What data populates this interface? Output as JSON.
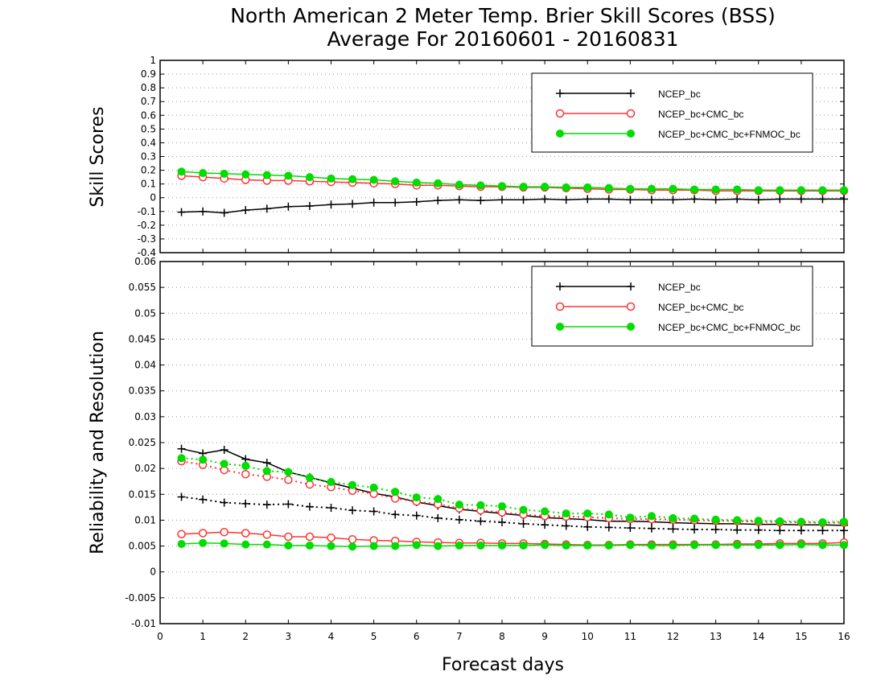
{
  "title_line1": "North American 2 Meter Temp. Brier Skill Scores (BSS)",
  "title_line2": "Average For 20160601 - 20160831",
  "xlabel": "Forecast days",
  "chart_data": [
    {
      "type": "line",
      "ylabel": "Skill Scores",
      "xlim": [
        0,
        16
      ],
      "ylim": [
        -0.4,
        1
      ],
      "xticks": [
        0,
        1,
        2,
        3,
        4,
        5,
        6,
        7,
        8,
        9,
        10,
        11,
        12,
        13,
        14,
        15,
        16
      ],
      "yticks": [
        "1",
        "0.9",
        "0.8",
        "0.7",
        "0.6",
        "0.5",
        "0.4",
        "0.3",
        "0.2",
        "0.1",
        "0",
        "-0.1",
        "-0.2",
        "-0.3",
        "-0.4"
      ],
      "ytick_values": [
        1,
        0.9,
        0.8,
        0.7,
        0.6,
        0.5,
        0.4,
        0.3,
        0.2,
        0.1,
        0,
        -0.1,
        -0.2,
        -0.3,
        -0.4
      ],
      "grid": true,
      "legend_placement": "top-right",
      "legend": [
        {
          "label": "NCEP_bc",
          "color": "#000000",
          "marker": "plus"
        },
        {
          "label": "NCEP_bc+CMC_bc",
          "color": "#ff3333",
          "marker": "open-circle"
        },
        {
          "label": "NCEP_bc+CMC_bc+FNMOC_bc",
          "color": "#00dd00",
          "marker": "filled-circle"
        }
      ],
      "x": [
        0.5,
        1,
        1.5,
        2,
        2.5,
        3,
        3.5,
        4,
        4.5,
        5,
        5.5,
        6,
        6.5,
        7,
        7.5,
        8,
        8.5,
        9,
        9.5,
        10,
        10.5,
        11,
        11.5,
        12,
        12.5,
        13,
        13.5,
        14,
        14.5,
        15,
        15.5,
        16
      ],
      "series": [
        {
          "name": "NCEP_bc",
          "color": "#000000",
          "marker": "plus",
          "style": "solid",
          "values": [
            -0.105,
            -0.1,
            -0.11,
            -0.09,
            -0.08,
            -0.065,
            -0.06,
            -0.05,
            -0.045,
            -0.035,
            -0.035,
            -0.03,
            -0.02,
            -0.015,
            -0.02,
            -0.015,
            -0.015,
            -0.01,
            -0.015,
            -0.01,
            -0.01,
            -0.015,
            -0.015,
            -0.015,
            -0.01,
            -0.015,
            -0.01,
            -0.015,
            -0.01,
            -0.01,
            -0.01,
            -0.01
          ]
        },
        {
          "name": "NCEP_bc+CMC_bc",
          "color": "#ff3333",
          "marker": "open-circle",
          "style": "solid",
          "values": [
            0.16,
            0.15,
            0.14,
            0.13,
            0.125,
            0.125,
            0.12,
            0.115,
            0.11,
            0.105,
            0.1,
            0.09,
            0.09,
            0.085,
            0.08,
            0.08,
            0.075,
            0.075,
            0.07,
            0.065,
            0.06,
            0.06,
            0.055,
            0.055,
            0.055,
            0.05,
            0.05,
            0.05,
            0.05,
            0.05,
            0.05,
            0.05
          ]
        },
        {
          "name": "NCEP_bc+CMC_bc+FNMOC_bc",
          "color": "#00dd00",
          "marker": "filled-circle",
          "style": "solid",
          "values": [
            0.19,
            0.18,
            0.175,
            0.17,
            0.165,
            0.16,
            0.15,
            0.14,
            0.135,
            0.13,
            0.12,
            0.11,
            0.105,
            0.095,
            0.09,
            0.085,
            0.08,
            0.08,
            0.075,
            0.075,
            0.07,
            0.065,
            0.065,
            0.065,
            0.06,
            0.06,
            0.06,
            0.055,
            0.055,
            0.055,
            0.055,
            0.055
          ]
        }
      ]
    },
    {
      "type": "line",
      "ylabel": "Reliability and Resolution",
      "xlim": [
        0,
        16
      ],
      "ylim": [
        -0.01,
        0.06
      ],
      "xticks": [
        0,
        1,
        2,
        3,
        4,
        5,
        6,
        7,
        8,
        9,
        10,
        11,
        12,
        13,
        14,
        15,
        16
      ],
      "yticks": [
        "0.06",
        "0.055",
        "0.05",
        "0.045",
        "0.04",
        "0.035",
        "0.03",
        "0.025",
        "0.02",
        "0.015",
        "0.01",
        "0.005",
        "0",
        "-0.005",
        "-0.01"
      ],
      "ytick_values": [
        0.06,
        0.055,
        0.05,
        0.045,
        0.04,
        0.035,
        0.03,
        0.025,
        0.02,
        0.015,
        0.01,
        0.005,
        0,
        -0.005,
        -0.01
      ],
      "grid": true,
      "legend_placement": "top-right",
      "legend": [
        {
          "label": "NCEP_bc",
          "color": "#000000",
          "marker": "plus"
        },
        {
          "label": "NCEP_bc+CMC_bc",
          "color": "#ff3333",
          "marker": "open-circle"
        },
        {
          "label": "NCEP_bc+CMC_bc+FNMOC_bc",
          "color": "#00dd00",
          "marker": "filled-circle"
        }
      ],
      "x": [
        0.5,
        1,
        1.5,
        2,
        2.5,
        3,
        3.5,
        4,
        4.5,
        5,
        5.5,
        6,
        6.5,
        7,
        7.5,
        8,
        8.5,
        9,
        9.5,
        10,
        10.5,
        11,
        11.5,
        12,
        12.5,
        13,
        13.5,
        14,
        14.5,
        15,
        15.5,
        16
      ],
      "series": [
        {
          "name": "NCEP_bc reliability",
          "color": "#000000",
          "marker": "plus",
          "style": "solid",
          "values": [
            0.0238,
            0.0229,
            0.0236,
            0.0218,
            0.0211,
            0.0193,
            0.0183,
            0.0172,
            0.0162,
            0.0152,
            0.0145,
            0.0135,
            0.0128,
            0.0121,
            0.0117,
            0.0113,
            0.0109,
            0.0105,
            0.0103,
            0.0101,
            0.0098,
            0.0098,
            0.0097,
            0.0095,
            0.0094,
            0.0093,
            0.0093,
            0.0092,
            0.0092,
            0.0091,
            0.0091,
            0.009
          ]
        },
        {
          "name": "NCEP_bc resolution",
          "color": "#000000",
          "marker": "plus",
          "style": "dotted",
          "values": [
            0.0145,
            0.014,
            0.0134,
            0.0132,
            0.013,
            0.0131,
            0.0126,
            0.0124,
            0.0119,
            0.0117,
            0.0111,
            0.0109,
            0.0104,
            0.0101,
            0.0098,
            0.0096,
            0.0093,
            0.0091,
            0.0089,
            0.0087,
            0.0086,
            0.0085,
            0.0084,
            0.0083,
            0.0082,
            0.0082,
            0.0081,
            0.0081,
            0.008,
            0.008,
            0.008,
            0.008
          ]
        },
        {
          "name": "NCEP_bc+CMC_bc reliability",
          "color": "#ff3333",
          "marker": "open-circle",
          "style": "solid",
          "values": [
            0.0073,
            0.0075,
            0.0077,
            0.0075,
            0.0072,
            0.0068,
            0.0068,
            0.0066,
            0.0063,
            0.0061,
            0.006,
            0.0058,
            0.0057,
            0.0056,
            0.0056,
            0.0055,
            0.0055,
            0.0054,
            0.0053,
            0.0052,
            0.0052,
            0.0053,
            0.0053,
            0.0053,
            0.0053,
            0.0053,
            0.0054,
            0.0054,
            0.0055,
            0.0055,
            0.0055,
            0.0057
          ]
        },
        {
          "name": "NCEP_bc+CMC_bc resolution",
          "color": "#ff3333",
          "marker": "open-circle",
          "style": "dotted",
          "values": [
            0.0214,
            0.0207,
            0.0197,
            0.0189,
            0.0184,
            0.0178,
            0.0169,
            0.0164,
            0.0157,
            0.0151,
            0.0142,
            0.0136,
            0.0131,
            0.0123,
            0.0119,
            0.0115,
            0.0111,
            0.0108,
            0.0107,
            0.0106,
            0.0104,
            0.0102,
            0.0102,
            0.0101,
            0.01,
            0.0099,
            0.0098,
            0.0097,
            0.0096,
            0.0096,
            0.0095,
            0.0095
          ]
        },
        {
          "name": "NCEP_bc+CMC_bc+FNMOC_bc reliability",
          "color": "#00dd00",
          "marker": "filled-circle",
          "style": "solid",
          "values": [
            0.0054,
            0.0056,
            0.0055,
            0.0053,
            0.0053,
            0.0051,
            0.0051,
            0.005,
            0.0049,
            0.005,
            0.005,
            0.0052,
            0.005,
            0.0051,
            0.0051,
            0.0051,
            0.0051,
            0.0052,
            0.0051,
            0.0051,
            0.0051,
            0.0052,
            0.0051,
            0.0051,
            0.0052,
            0.0052,
            0.0052,
            0.0052,
            0.0052,
            0.0053,
            0.0052,
            0.0052
          ]
        },
        {
          "name": "NCEP_bc+CMC_bc+FNMOC_bc resolution",
          "color": "#00dd00",
          "marker": "filled-circle",
          "style": "dotted",
          "values": [
            0.022,
            0.0217,
            0.0209,
            0.0205,
            0.0195,
            0.0193,
            0.0182,
            0.0174,
            0.0168,
            0.0163,
            0.0155,
            0.0144,
            0.0141,
            0.013,
            0.0129,
            0.0127,
            0.012,
            0.0117,
            0.0113,
            0.0113,
            0.0111,
            0.0105,
            0.0108,
            0.0104,
            0.0103,
            0.0101,
            0.01,
            0.0099,
            0.0098,
            0.0097,
            0.0096,
            0.0097
          ]
        }
      ]
    }
  ]
}
